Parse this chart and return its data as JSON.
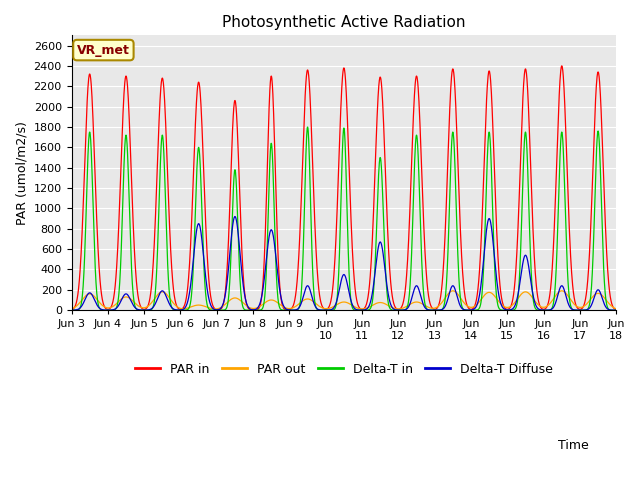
{
  "title": "Photosynthetic Active Radiation",
  "xlabel": "Time",
  "ylabel": "PAR (umol/m2/s)",
  "ylim": [
    0,
    2700
  ],
  "yticks": [
    0,
    200,
    400,
    600,
    800,
    1000,
    1200,
    1400,
    1600,
    1800,
    2000,
    2200,
    2400,
    2600
  ],
  "plot_bg_color": "#e8e8e8",
  "colors": {
    "PAR in": "#ff0000",
    "PAR out": "#ffa500",
    "Delta-T in": "#00cc00",
    "Delta-T Diffuse": "#0000cc"
  },
  "annotation_text": "VR_met",
  "annotation_bg": "#ffffcc",
  "annotation_border": "#aa8800",
  "annotation_text_color": "#880000",
  "n_days": 15,
  "start_day": 3,
  "title_fontsize": 11,
  "label_fontsize": 9,
  "tick_fontsize": 8,
  "legend_fontsize": 9
}
